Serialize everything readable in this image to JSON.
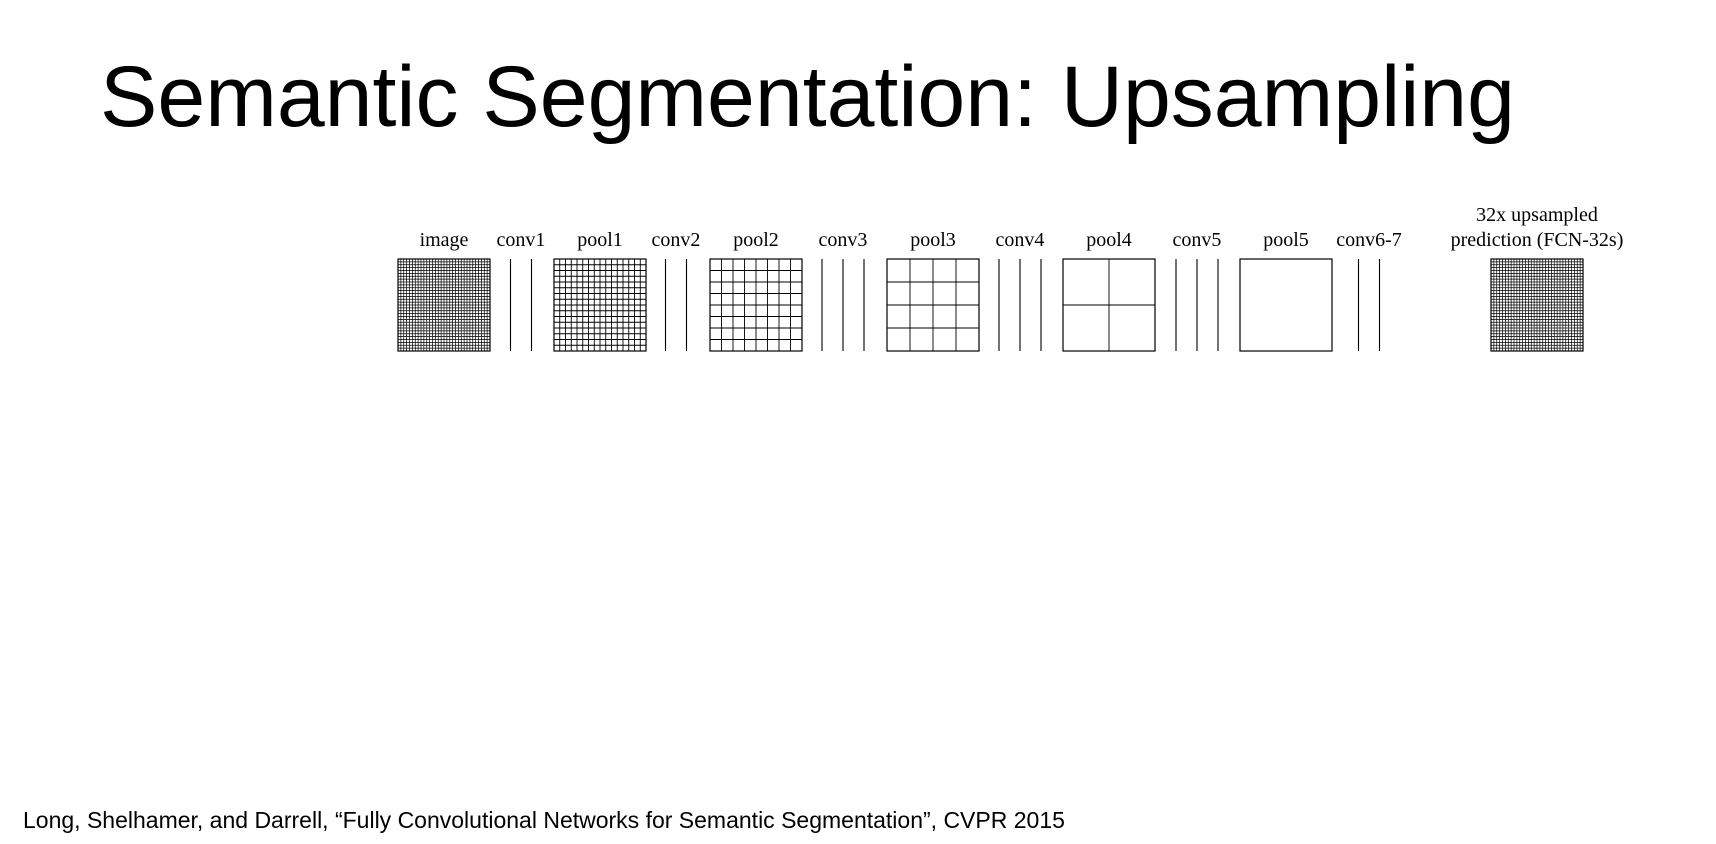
{
  "slide": {
    "title": "Semantic Segmentation: Upsampling",
    "citation": "Long, Shelhamer, and Darrell, “Fully Convolutional Networks for Semantic Segmentation”, CVPR 2015"
  },
  "diagram": {
    "stages": [
      {
        "id": "image",
        "label": "image",
        "kind": "grid",
        "cells": 32
      },
      {
        "id": "conv1",
        "label": "conv1",
        "kind": "layers",
        "lines": 2
      },
      {
        "id": "pool1",
        "label": "pool1",
        "kind": "grid",
        "cells": 16
      },
      {
        "id": "conv2",
        "label": "conv2",
        "kind": "layers",
        "lines": 2
      },
      {
        "id": "pool2",
        "label": "pool2",
        "kind": "grid",
        "cells": 8
      },
      {
        "id": "conv3",
        "label": "conv3",
        "kind": "layers",
        "lines": 3
      },
      {
        "id": "pool3",
        "label": "pool3",
        "kind": "grid",
        "cells": 4
      },
      {
        "id": "conv4",
        "label": "conv4",
        "kind": "layers",
        "lines": 3
      },
      {
        "id": "pool4",
        "label": "pool4",
        "kind": "grid",
        "cells": 2
      },
      {
        "id": "conv5",
        "label": "conv5",
        "kind": "layers",
        "lines": 3
      },
      {
        "id": "pool5",
        "label": "pool5",
        "kind": "grid",
        "cells": 1
      },
      {
        "id": "conv6-7",
        "label": "conv6-7",
        "kind": "layers",
        "lines": 2
      },
      {
        "id": "prediction",
        "label": [
          "32x upsampled",
          "prediction (FCN-32s)"
        ],
        "kind": "grid",
        "cells": 32
      }
    ]
  }
}
